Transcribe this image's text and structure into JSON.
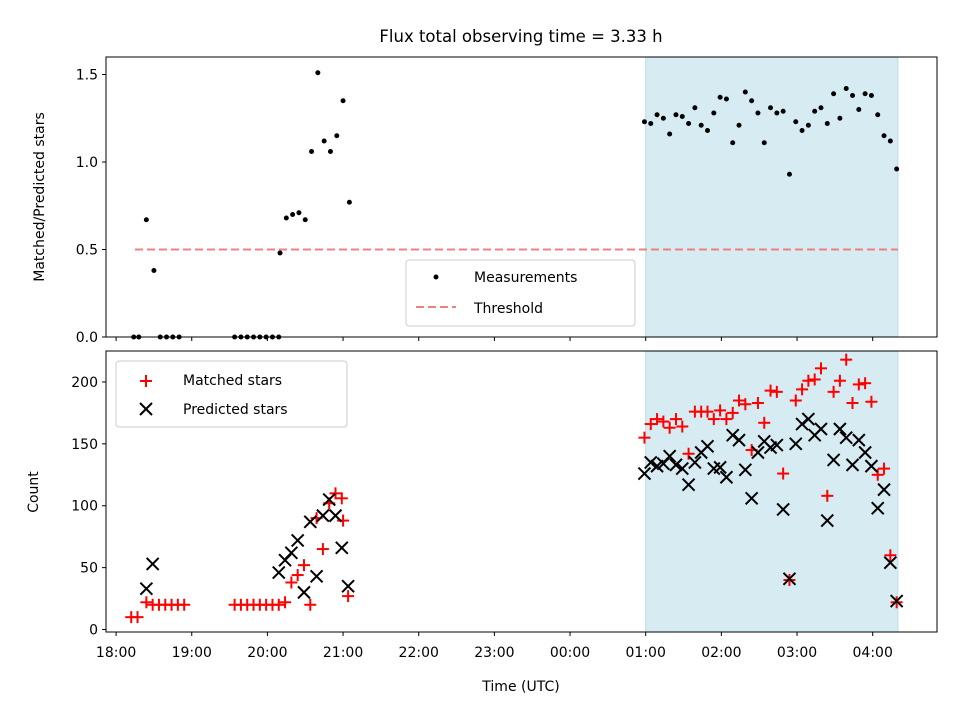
{
  "chart_data": [
    {
      "type": "scatter",
      "title": "Flux total observing time = 3.33 h",
      "xlabel": "",
      "ylabel": "Matched/Predicted stars",
      "xlim": [
        "17:52",
        "04:51"
      ],
      "ylim": [
        0,
        1.6
      ],
      "yticks": [
        0.0,
        0.5,
        1.0,
        1.5
      ],
      "ytick_labels": [
        "0.0",
        "0.5",
        "1.0",
        "1.5"
      ],
      "observing_window": [
        "01:00",
        "04:20"
      ],
      "legend": {
        "position": "lower-center",
        "entries": [
          "Measurements",
          "Threshold"
        ]
      },
      "threshold": {
        "name": "Threshold",
        "value": 0.5,
        "x_range": [
          "18:15",
          "04:20"
        ],
        "color": "#f08080"
      },
      "series": [
        {
          "name": "Measurements",
          "color": "#000000",
          "points": [
            [
              "18:14",
              0
            ],
            [
              "18:18",
              0
            ],
            [
              "18:24",
              0.67
            ],
            [
              "18:30",
              0.38
            ],
            [
              "18:35",
              0
            ],
            [
              "18:40",
              0
            ],
            [
              "18:45",
              0
            ],
            [
              "18:50",
              0
            ],
            [
              "19:34",
              0
            ],
            [
              "19:39",
              0
            ],
            [
              "19:44",
              0
            ],
            [
              "19:49",
              0
            ],
            [
              "19:54",
              0
            ],
            [
              "19:59",
              0
            ],
            [
              "20:04",
              0
            ],
            [
              "20:09",
              0
            ],
            [
              "20:10",
              0.48
            ],
            [
              "20:15",
              0.68
            ],
            [
              "20:20",
              0.7
            ],
            [
              "20:25",
              0.71
            ],
            [
              "20:30",
              0.67
            ],
            [
              "20:35",
              1.06
            ],
            [
              "20:40",
              1.51
            ],
            [
              "20:45",
              1.12
            ],
            [
              "20:50",
              1.06
            ],
            [
              "20:55",
              1.15
            ],
            [
              "21:00",
              1.35
            ],
            [
              "21:05",
              0.77
            ],
            [
              "00:59",
              1.23
            ],
            [
              "01:04",
              1.22
            ],
            [
              "01:09",
              1.27
            ],
            [
              "01:14",
              1.25
            ],
            [
              "01:19",
              1.16
            ],
            [
              "01:24",
              1.27
            ],
            [
              "01:29",
              1.26
            ],
            [
              "01:34",
              1.22
            ],
            [
              "01:39",
              1.31
            ],
            [
              "01:44",
              1.21
            ],
            [
              "01:49",
              1.18
            ],
            [
              "01:54",
              1.28
            ],
            [
              "01:59",
              1.37
            ],
            [
              "02:04",
              1.36
            ],
            [
              "02:09",
              1.11
            ],
            [
              "02:14",
              1.21
            ],
            [
              "02:19",
              1.4
            ],
            [
              "02:24",
              1.35
            ],
            [
              "02:29",
              1.28
            ],
            [
              "02:34",
              1.11
            ],
            [
              "02:39",
              1.31
            ],
            [
              "02:44",
              1.28
            ],
            [
              "02:49",
              1.29
            ],
            [
              "02:54",
              0.93
            ],
            [
              "02:59",
              1.23
            ],
            [
              "03:04",
              1.18
            ],
            [
              "03:09",
              1.21
            ],
            [
              "03:14",
              1.29
            ],
            [
              "03:19",
              1.31
            ],
            [
              "03:24",
              1.22
            ],
            [
              "03:29",
              1.39
            ],
            [
              "03:34",
              1.25
            ],
            [
              "03:39",
              1.42
            ],
            [
              "03:44",
              1.38
            ],
            [
              "03:49",
              1.3
            ],
            [
              "03:54",
              1.39
            ],
            [
              "03:59",
              1.38
            ],
            [
              "04:04",
              1.27
            ],
            [
              "04:09",
              1.15
            ],
            [
              "04:14",
              1.12
            ],
            [
              "04:19",
              0.96
            ]
          ]
        }
      ]
    },
    {
      "type": "scatter",
      "title": "",
      "xlabel": "Time (UTC)",
      "ylabel": "Count",
      "xlim": [
        "17:52",
        "04:51"
      ],
      "ylim": [
        -2,
        225
      ],
      "yticks": [
        0,
        50,
        100,
        150,
        200
      ],
      "ytick_labels": [
        "0",
        "50",
        "100",
        "150",
        "200"
      ],
      "xticks": [
        "18:00",
        "19:00",
        "20:00",
        "21:00",
        "22:00",
        "23:00",
        "00:00",
        "01:00",
        "02:00",
        "03:00",
        "04:00"
      ],
      "observing_window": [
        "01:00",
        "04:20"
      ],
      "legend": {
        "position": "top-left",
        "entries": [
          "Matched stars",
          "Predicted stars"
        ]
      },
      "series": [
        {
          "name": "Matched stars",
          "marker": "plus",
          "color": "#ff0000",
          "points": [
            [
              "18:12",
              10
            ],
            [
              "18:17",
              10
            ],
            [
              "18:24",
              22
            ],
            [
              "18:29",
              20
            ],
            [
              "18:34",
              20
            ],
            [
              "18:39",
              20
            ],
            [
              "18:44",
              20
            ],
            [
              "18:49",
              20
            ],
            [
              "18:54",
              20
            ],
            [
              "19:34",
              20
            ],
            [
              "19:39",
              20
            ],
            [
              "19:44",
              20
            ],
            [
              "19:49",
              20
            ],
            [
              "19:54",
              20
            ],
            [
              "19:59",
              20
            ],
            [
              "20:04",
              20
            ],
            [
              "20:09",
              20
            ],
            [
              "20:14",
              22
            ],
            [
              "20:19",
              38
            ],
            [
              "20:24",
              44
            ],
            [
              "20:29",
              52
            ],
            [
              "20:34",
              20
            ],
            [
              "20:39",
              90
            ],
            [
              "20:44",
              65
            ],
            [
              "20:49",
              102
            ],
            [
              "20:54",
              110
            ],
            [
              "20:59",
              106
            ],
            [
              "21:00",
              88
            ],
            [
              "21:04",
              27
            ],
            [
              "00:59",
              155
            ],
            [
              "01:04",
              166
            ],
            [
              "01:09",
              170
            ],
            [
              "01:14",
              168
            ],
            [
              "01:19",
              163
            ],
            [
              "01:24",
              170
            ],
            [
              "01:29",
              164
            ],
            [
              "01:34",
              142
            ],
            [
              "01:39",
              176
            ],
            [
              "01:44",
              176
            ],
            [
              "01:49",
              176
            ],
            [
              "01:54",
              170
            ],
            [
              "01:59",
              177
            ],
            [
              "02:04",
              170
            ],
            [
              "02:09",
              175
            ],
            [
              "02:14",
              185
            ],
            [
              "02:19",
              182
            ],
            [
              "02:24",
              145
            ],
            [
              "02:29",
              183
            ],
            [
              "02:34",
              167
            ],
            [
              "02:39",
              193
            ],
            [
              "02:44",
              192
            ],
            [
              "02:49",
              126
            ],
            [
              "02:54",
              40
            ],
            [
              "02:59",
              185
            ],
            [
              "03:04",
              194
            ],
            [
              "03:09",
              201
            ],
            [
              "03:14",
              202
            ],
            [
              "03:19",
              211
            ],
            [
              "03:24",
              108
            ],
            [
              "03:29",
              192
            ],
            [
              "03:34",
              201
            ],
            [
              "03:39",
              218
            ],
            [
              "03:44",
              183
            ],
            [
              "03:49",
              198
            ],
            [
              "03:54",
              199
            ],
            [
              "03:59",
              184
            ],
            [
              "04:04",
              125
            ],
            [
              "04:09",
              130
            ],
            [
              "04:14",
              60
            ],
            [
              "04:19",
              22
            ]
          ]
        },
        {
          "name": "Predicted stars",
          "marker": "x",
          "color": "#000000",
          "points": [
            [
              "18:24",
              33
            ],
            [
              "18:29",
              53
            ],
            [
              "20:09",
              46
            ],
            [
              "20:14",
              56
            ],
            [
              "20:19",
              62
            ],
            [
              "20:24",
              72
            ],
            [
              "20:29",
              30
            ],
            [
              "20:34",
              87
            ],
            [
              "20:39",
              43
            ],
            [
              "20:44",
              92
            ],
            [
              "20:49",
              105
            ],
            [
              "20:54",
              92
            ],
            [
              "20:59",
              66
            ],
            [
              "21:04",
              35
            ],
            [
              "00:59",
              126
            ],
            [
              "01:04",
              135
            ],
            [
              "01:09",
              132
            ],
            [
              "01:14",
              134
            ],
            [
              "01:19",
              140
            ],
            [
              "01:24",
              133
            ],
            [
              "01:29",
              130
            ],
            [
              "01:34",
              117
            ],
            [
              "01:39",
              135
            ],
            [
              "01:44",
              143
            ],
            [
              "01:49",
              148
            ],
            [
              "01:54",
              130
            ],
            [
              "01:59",
              131
            ],
            [
              "02:04",
              123
            ],
            [
              "02:09",
              157
            ],
            [
              "02:14",
              153
            ],
            [
              "02:19",
              129
            ],
            [
              "02:24",
              106
            ],
            [
              "02:29",
              143
            ],
            [
              "02:34",
              152
            ],
            [
              "02:39",
              147
            ],
            [
              "02:44",
              149
            ],
            [
              "02:49",
              97
            ],
            [
              "02:54",
              41
            ],
            [
              "02:59",
              150
            ],
            [
              "03:04",
              166
            ],
            [
              "03:09",
              170
            ],
            [
              "03:14",
              157
            ],
            [
              "03:19",
              162
            ],
            [
              "03:24",
              88
            ],
            [
              "03:29",
              137
            ],
            [
              "03:34",
              162
            ],
            [
              "03:39",
              155
            ],
            [
              "03:44",
              133
            ],
            [
              "03:49",
              153
            ],
            [
              "03:54",
              143
            ],
            [
              "03:59",
              132
            ],
            [
              "04:04",
              98
            ],
            [
              "04:09",
              113
            ],
            [
              "04:14",
              54
            ],
            [
              "04:19",
              23
            ]
          ]
        }
      ]
    }
  ],
  "colors": {
    "observing_window_fill": "#add8e6",
    "threshold": "#f08080",
    "matched": "#ff0000",
    "predicted": "#000000",
    "measurements": "#000000"
  }
}
